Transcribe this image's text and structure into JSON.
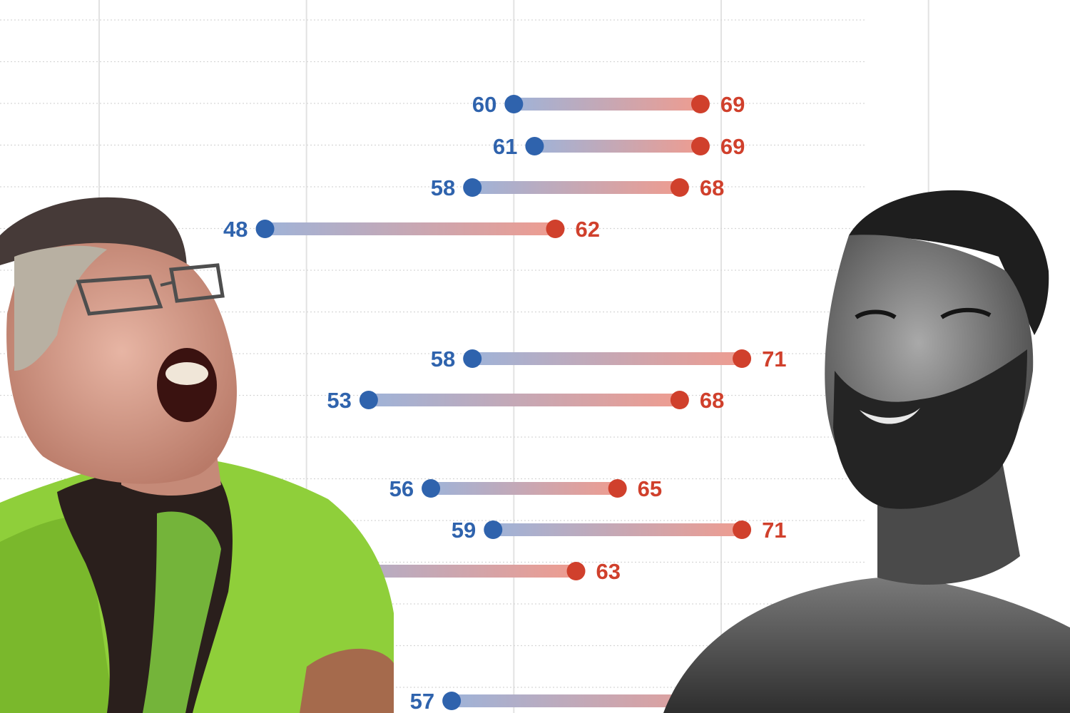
{
  "chart_data": {
    "type": "dumbbell",
    "x_range": [
      40,
      85
    ],
    "colors": {
      "low": "#2f63ad",
      "high": "#d0402c",
      "grid": "#e2e2e2"
    },
    "rows": [
      {
        "low": 60,
        "high": 69,
        "low_label": "60",
        "high_label": "69"
      },
      {
        "low": 61,
        "high": 69,
        "low_label": "61",
        "high_label": "69"
      },
      {
        "low": 58,
        "high": 68,
        "low_label": "58",
        "high_label": "68"
      },
      {
        "low": 48,
        "high": 62,
        "low_label": "48",
        "high_label": "62"
      },
      {
        "low": 58,
        "high": 71,
        "low_label": "58",
        "high_label": "71"
      },
      {
        "low": 53,
        "high": 68,
        "low_label": "53",
        "high_label": "68"
      },
      {
        "low": 56,
        "high": 65,
        "low_label": "56",
        "high_label": "65"
      },
      {
        "low": 59,
        "high": 71,
        "low_label": "59",
        "high_label": "71"
      },
      {
        "low": null,
        "high": 63,
        "low_label": "",
        "high_label": "63"
      },
      {
        "low": 57,
        "high": null,
        "low_label": "57",
        "high_label": ""
      }
    ]
  },
  "overlays": {
    "left_image": "screaming-woman-in-green-jacket",
    "right_image": "grayscale-bearded-muscular-man-smiling"
  }
}
